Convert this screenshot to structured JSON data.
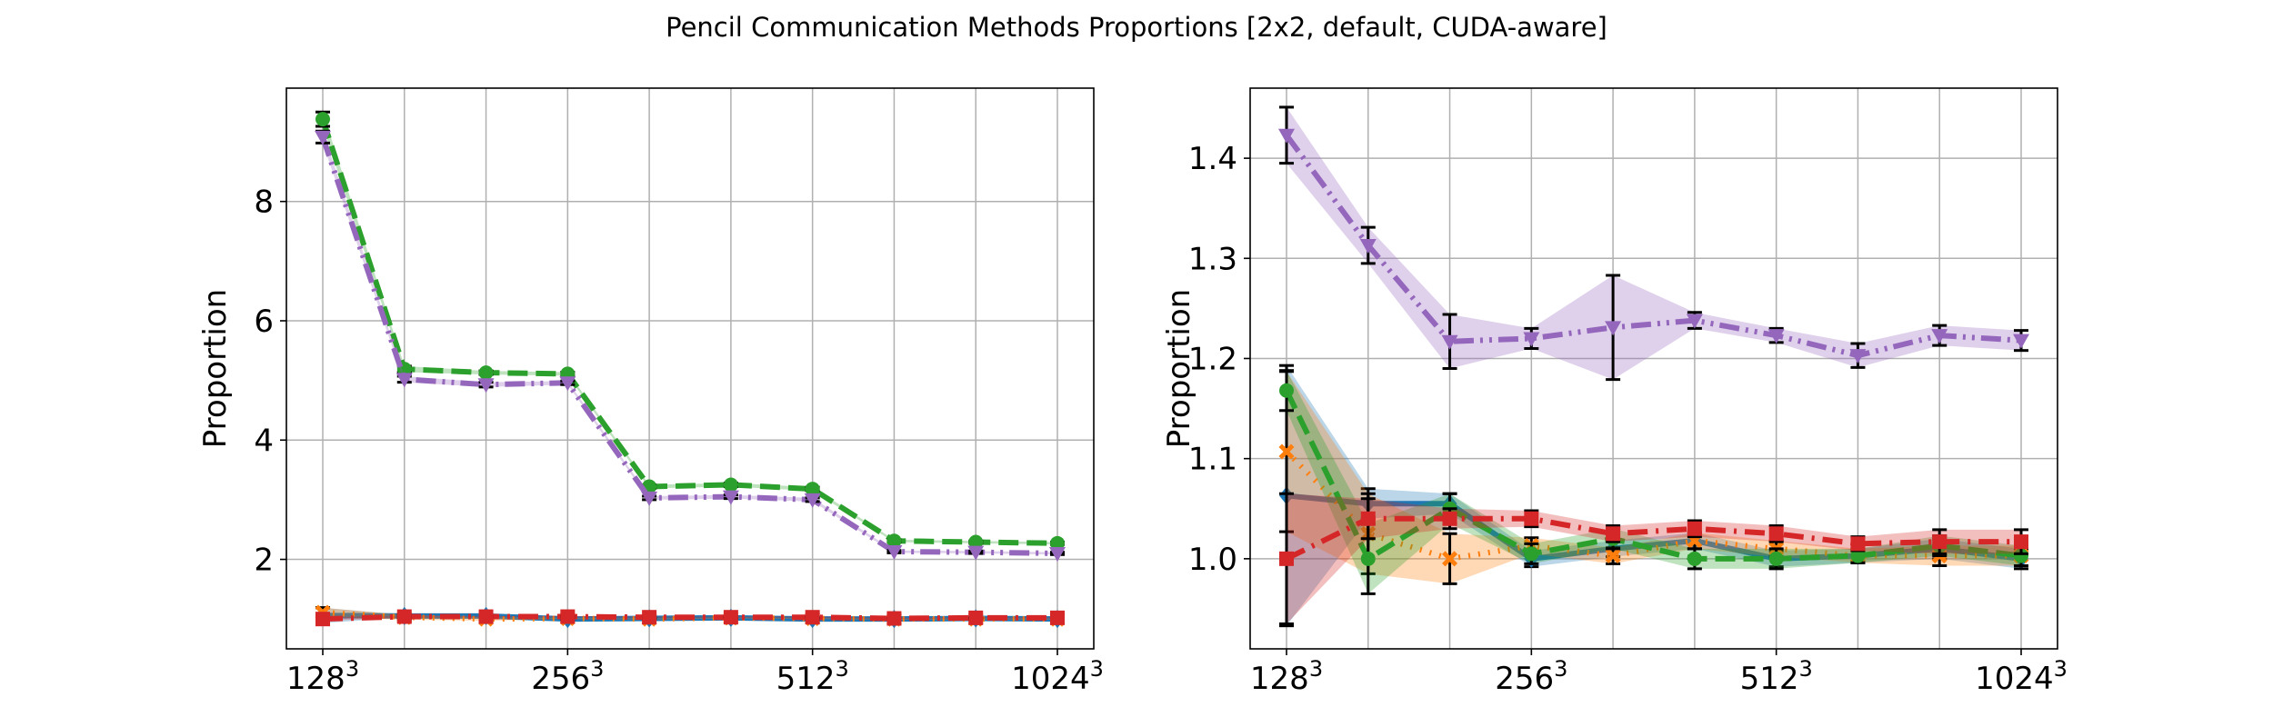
{
  "figure": {
    "title": "Pencil Communication Methods Proportions [2x2, default, CUDA-aware]",
    "background": "#ffffff"
  },
  "chart_data": [
    {
      "type": "line",
      "ylabel": "Proportion",
      "xlabel": "",
      "x_tick_labels": [
        {
          "base": "128",
          "exp": "3"
        },
        {
          "base": "256",
          "exp": "3"
        },
        {
          "base": "512",
          "exp": "3"
        },
        {
          "base": "1024",
          "exp": "3"
        }
      ],
      "x_tick_index": [
        0,
        3,
        6,
        9
      ],
      "y_ticks": [
        2,
        4,
        6,
        8
      ],
      "ylim": [
        0.5,
        9.9
      ],
      "grid": true,
      "series": [
        {
          "color": "#1f77b4",
          "style": "solid",
          "marker": "diamond",
          "values": [
            1.06,
            1.05,
            1.05,
            1.0,
            1.01,
            1.02,
            1.0,
            1.0,
            1.01,
            1.0
          ],
          "err": [
            0.13,
            0.02,
            0.01,
            0.01,
            0.01,
            0.01,
            0.01,
            0.01,
            0.01,
            0.01
          ]
        },
        {
          "color": "#ff7f0e",
          "style": "dotted",
          "marker": "x",
          "values": [
            1.11,
            1.03,
            1.0,
            1.01,
            1.0,
            1.02,
            1.01,
            1.0,
            1.0,
            1.0
          ],
          "err": [
            0.08,
            0.04,
            0.03,
            0.01,
            0.01,
            0.01,
            0.01,
            0.01,
            0.01,
            0.01
          ]
        },
        {
          "color": "#2ca02c",
          "style": "dashed",
          "marker": "circle",
          "values": [
            9.38,
            5.19,
            5.13,
            5.11,
            3.22,
            3.25,
            3.18,
            2.31,
            2.29,
            2.27
          ],
          "err": [
            0.12,
            0.05,
            0.03,
            0.03,
            0.03,
            0.03,
            0.03,
            0.02,
            0.02,
            0.02
          ]
        },
        {
          "color": "#d62728",
          "style": "dashdot",
          "marker": "square",
          "values": [
            1.0,
            1.04,
            1.04,
            1.04,
            1.03,
            1.03,
            1.03,
            1.01,
            1.02,
            1.02
          ],
          "err": [
            0.03,
            0.02,
            0.01,
            0.01,
            0.01,
            0.01,
            0.01,
            0.01,
            0.01,
            0.01
          ]
        },
        {
          "color": "#9467bd",
          "style": "dashdotdot",
          "marker": "triangle-down",
          "values": [
            9.08,
            5.02,
            4.93,
            4.96,
            3.03,
            3.05,
            3.0,
            2.13,
            2.12,
            2.1
          ],
          "err": [
            0.1,
            0.05,
            0.04,
            0.03,
            0.03,
            0.03,
            0.03,
            0.02,
            0.02,
            0.02
          ]
        }
      ]
    },
    {
      "type": "line",
      "ylabel": "Proportion",
      "xlabel": "",
      "x_tick_labels": [
        {
          "base": "128",
          "exp": "3"
        },
        {
          "base": "256",
          "exp": "3"
        },
        {
          "base": "512",
          "exp": "3"
        },
        {
          "base": "1024",
          "exp": "3"
        }
      ],
      "x_tick_index": [
        0,
        3,
        6,
        9
      ],
      "y_ticks": [
        1.0,
        1.1,
        1.2,
        1.3,
        1.4
      ],
      "ylim": [
        0.91,
        1.47
      ],
      "grid": true,
      "series": [
        {
          "color": "#1f77b4",
          "style": "solid",
          "marker": "diamond",
          "values": [
            1.063,
            1.055,
            1.055,
            1.0,
            1.01,
            1.018,
            1.0,
            1.003,
            1.01,
            1.0
          ],
          "err": [
            0.13,
            0.015,
            0.01,
            0.008,
            0.008,
            0.008,
            0.008,
            0.007,
            0.01,
            0.01
          ]
        },
        {
          "color": "#ff7f0e",
          "style": "dotted",
          "marker": "x",
          "values": [
            1.107,
            1.025,
            1.0,
            1.013,
            1.003,
            1.018,
            1.01,
            1.003,
            1.003,
            1.003
          ],
          "err": [
            0.08,
            0.04,
            0.025,
            0.008,
            0.008,
            0.008,
            0.008,
            0.007,
            0.01,
            0.01
          ]
        },
        {
          "color": "#2ca02c",
          "style": "dashed",
          "marker": "circle",
          "values": [
            1.168,
            1.0,
            1.05,
            1.005,
            1.02,
            1.0,
            1.0,
            1.003,
            1.013,
            1.003
          ],
          "err": [
            0.02,
            0.035,
            0.015,
            0.01,
            0.01,
            0.01,
            0.01,
            0.007,
            0.01,
            0.01
          ]
        },
        {
          "color": "#d62728",
          "style": "dashdot",
          "marker": "square",
          "values": [
            1.0,
            1.04,
            1.04,
            1.04,
            1.025,
            1.03,
            1.025,
            1.015,
            1.017,
            1.017
          ],
          "err": [
            0.065,
            0.02,
            0.01,
            0.008,
            0.008,
            0.008,
            0.008,
            0.007,
            0.012,
            0.012
          ]
        },
        {
          "color": "#9467bd",
          "style": "dashdotdot",
          "marker": "triangle-down",
          "values": [
            1.423,
            1.313,
            1.217,
            1.22,
            1.231,
            1.238,
            1.223,
            1.203,
            1.223,
            1.218
          ],
          "err": [
            0.028,
            0.018,
            0.027,
            0.01,
            0.052,
            0.008,
            0.007,
            0.012,
            0.01,
            0.01
          ]
        }
      ]
    }
  ]
}
